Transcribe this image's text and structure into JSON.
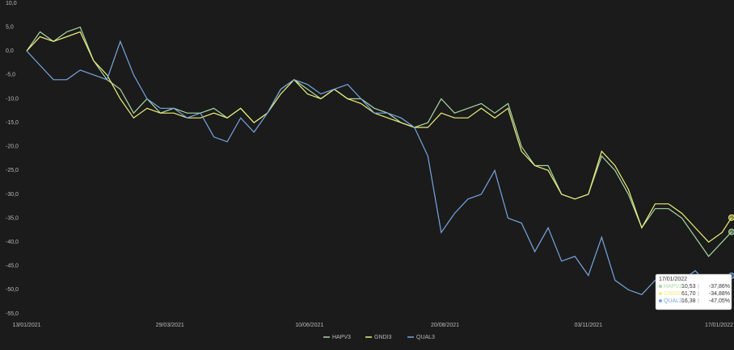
{
  "chart_data": {
    "type": "line",
    "x": [
      "13/01/2021",
      "20/01/2021",
      "27/01/2021",
      "03/02/2021",
      "10/02/2021",
      "17/02/2021",
      "24/02/2021",
      "03/03/2021",
      "10/03/2021",
      "17/03/2021",
      "24/03/2021",
      "31/03/2021",
      "07/04/2021",
      "14/04/2021",
      "21/04/2021",
      "28/04/2021",
      "05/05/2021",
      "12/05/2021",
      "19/05/2021",
      "26/05/2021",
      "02/06/2021",
      "09/06/2021",
      "16/06/2021",
      "23/06/2021",
      "30/06/2021",
      "07/07/2021",
      "14/07/2021",
      "21/07/2021",
      "28/07/2021",
      "04/08/2021",
      "11/08/2021",
      "18/08/2021",
      "25/08/2021",
      "01/09/2021",
      "08/09/2021",
      "15/09/2021",
      "22/09/2021",
      "29/09/2021",
      "06/10/2021",
      "13/10/2021",
      "20/10/2021",
      "27/10/2021",
      "03/11/2021",
      "10/11/2021",
      "17/11/2021",
      "24/11/2021",
      "01/12/2021",
      "08/12/2021",
      "15/12/2021",
      "22/12/2021",
      "29/12/2021",
      "05/01/2022",
      "12/01/2022",
      "17/01/2022"
    ],
    "series": [
      {
        "name": "HAPV3",
        "color": "#a9d8a4",
        "values": [
          0,
          4,
          2,
          4,
          5,
          -2,
          -6,
          -8,
          -13,
          -10,
          -13,
          -12,
          -13,
          -13,
          -12,
          -14,
          -12,
          -15,
          -13,
          -8,
          -6,
          -8,
          -10,
          -8,
          -10,
          -10,
          -12,
          -13,
          -15,
          -16,
          -15,
          -10,
          -13,
          -12,
          -11,
          -13,
          -11,
          -20,
          -24,
          -24,
          -30,
          -31,
          -30,
          -22,
          -25,
          -30,
          -37,
          -33,
          -33,
          -35,
          -39,
          -43,
          -40,
          -37.86
        ]
      },
      {
        "name": "GNDI3",
        "color": "#eef07a",
        "values": [
          0,
          3,
          2,
          3,
          4,
          -2,
          -5,
          -10,
          -14,
          -12,
          -13,
          -13,
          -14,
          -14,
          -13,
          -14,
          -12,
          -15,
          -13,
          -9,
          -6,
          -9,
          -10,
          -8,
          -10,
          -11,
          -13,
          -14,
          -15,
          -16,
          -16,
          -13,
          -14,
          -14,
          -12,
          -14,
          -12,
          -21,
          -24,
          -25,
          -30,
          -31,
          -30,
          -21,
          -24,
          -29,
          -37,
          -32,
          -32,
          -34,
          -37,
          -40,
          -38,
          -34.88
        ]
      },
      {
        "name": "QUAL3",
        "color": "#78a6e0",
        "values": [
          0,
          -3,
          -6,
          -6,
          -4,
          -5,
          -6,
          2,
          -5,
          -10,
          -12,
          -12,
          -14,
          -13,
          -18,
          -19,
          -14,
          -17,
          -13,
          -8,
          -6,
          -7,
          -9,
          -8,
          -7,
          -10,
          -13,
          -13,
          -14,
          -16,
          -22,
          -38,
          -34,
          -31,
          -30,
          -25,
          -35,
          -36,
          -42,
          -37,
          -44,
          -43,
          -47,
          -39,
          -48,
          -50,
          -51,
          -48,
          -48,
          -48,
          -46,
          -49,
          -49,
          -47.05
        ]
      }
    ],
    "xlim": [
      "13/01/2021",
      "17/01/2022"
    ],
    "xticks": [
      "13/01/2021",
      "29/03/2021",
      "10/06/2021",
      "20/08/2021",
      "03/11/2021",
      "17/01/2022"
    ],
    "ylim": [
      -55,
      10
    ],
    "yticks": [
      {
        "value": 10,
        "label": "10,0"
      },
      {
        "value": 5,
        "label": "5,0"
      },
      {
        "value": 0,
        "label": "0,0"
      },
      {
        "value": -5,
        "label": "-5,0"
      },
      {
        "value": -10,
        "label": "-10,0"
      },
      {
        "value": -15,
        "label": "-15,0"
      },
      {
        "value": -20,
        "label": "-20,0"
      },
      {
        "value": -25,
        "label": "-25,0"
      },
      {
        "value": -30,
        "label": "-30,0"
      },
      {
        "value": -35,
        "label": "-35,0"
      },
      {
        "value": -40,
        "label": "-40,0"
      },
      {
        "value": -45,
        "label": "-45,0"
      },
      {
        "value": -50,
        "label": "-50,0"
      },
      {
        "value": -55,
        "label": "-55,0"
      }
    ],
    "grid": false,
    "legend": "bottom",
    "tooltip": {
      "date": "17/01/2022",
      "rows": [
        {
          "price": "10,53",
          "change": "-37,86%"
        },
        {
          "price": "61,70",
          "change": "-34,88%"
        },
        {
          "price": "16,38",
          "change": "-47,05%"
        }
      ]
    }
  }
}
